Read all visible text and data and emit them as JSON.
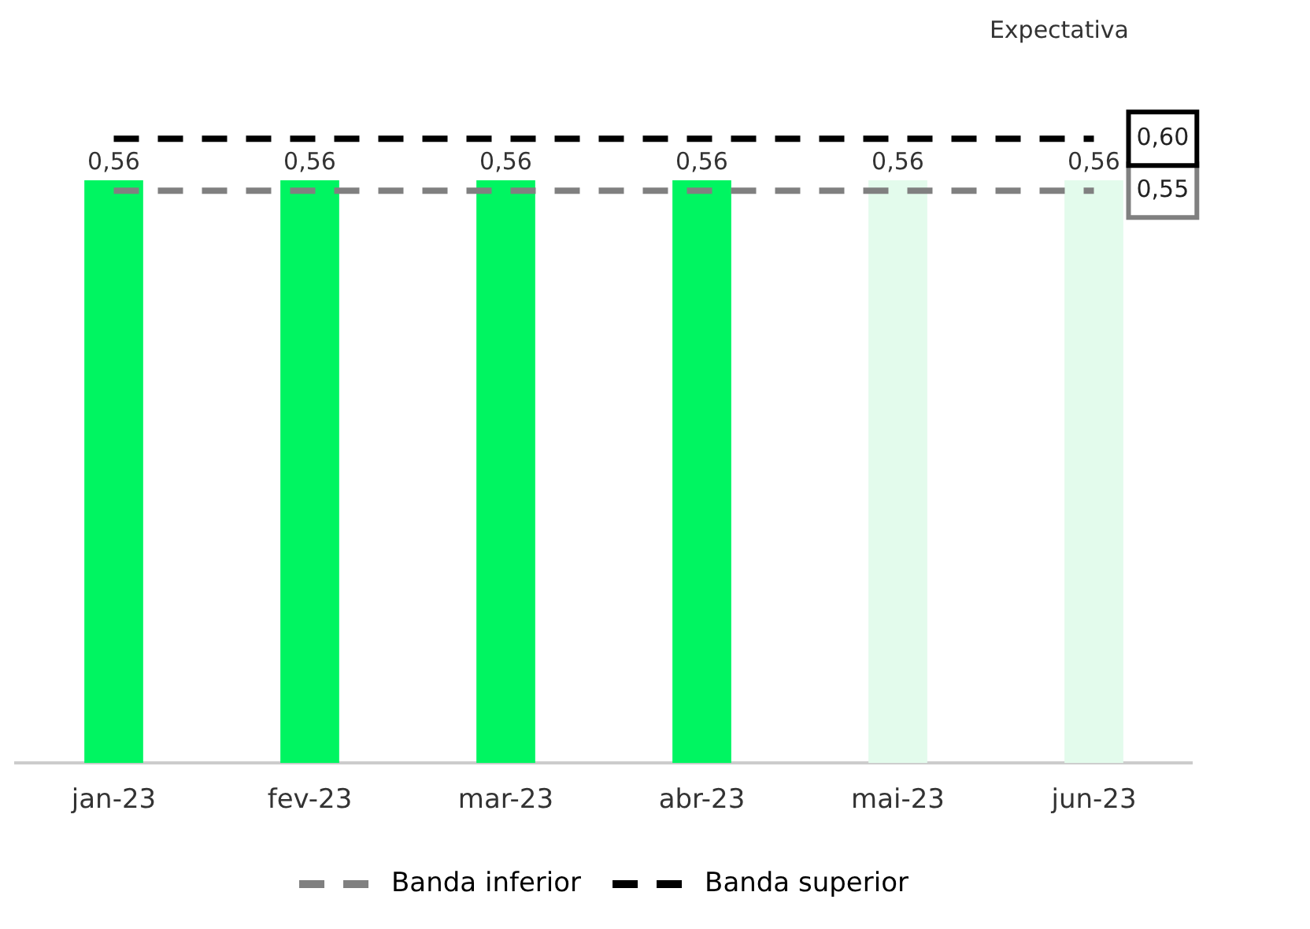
{
  "chart_data": {
    "type": "bar",
    "categories": [
      "jan-23",
      "fev-23",
      "mar-23",
      "abr-23",
      "mai-23",
      "jun-23"
    ],
    "tick_labels": "x",
    "grid": false,
    "legend": "bottom",
    "series": [
      {
        "colors": [
          "#00f561",
          "#00f561",
          "#00f561",
          "#00f561",
          "#e3fbec",
          "#e3fbec"
        ],
        "values": [
          0.56,
          0.56,
          0.56,
          0.56,
          0.56,
          0.56
        ],
        "value_labels": [
          "0,56",
          "0,56",
          "0,56",
          "0,56",
          "0,56",
          "0,56"
        ]
      },
      {
        "type": "line",
        "name": "Banda inferior",
        "color": "#808080",
        "line_style": "dashed",
        "values": [
          0.55,
          0.55,
          0.55,
          0.55,
          0.55,
          0.55
        ],
        "value_labels": [
          null,
          null,
          null,
          null,
          null,
          "0,55"
        ]
      },
      {
        "type": "line",
        "name": "Banda superior",
        "color": "#000000",
        "line_style": "dashed",
        "values": [
          0.6,
          0.6,
          0.6,
          0.6,
          0.6,
          0.6
        ],
        "value_labels": [
          null,
          null,
          null,
          null,
          null,
          "0,60"
        ]
      }
    ],
    "annotations": [
      "Expectativa"
    ]
  }
}
